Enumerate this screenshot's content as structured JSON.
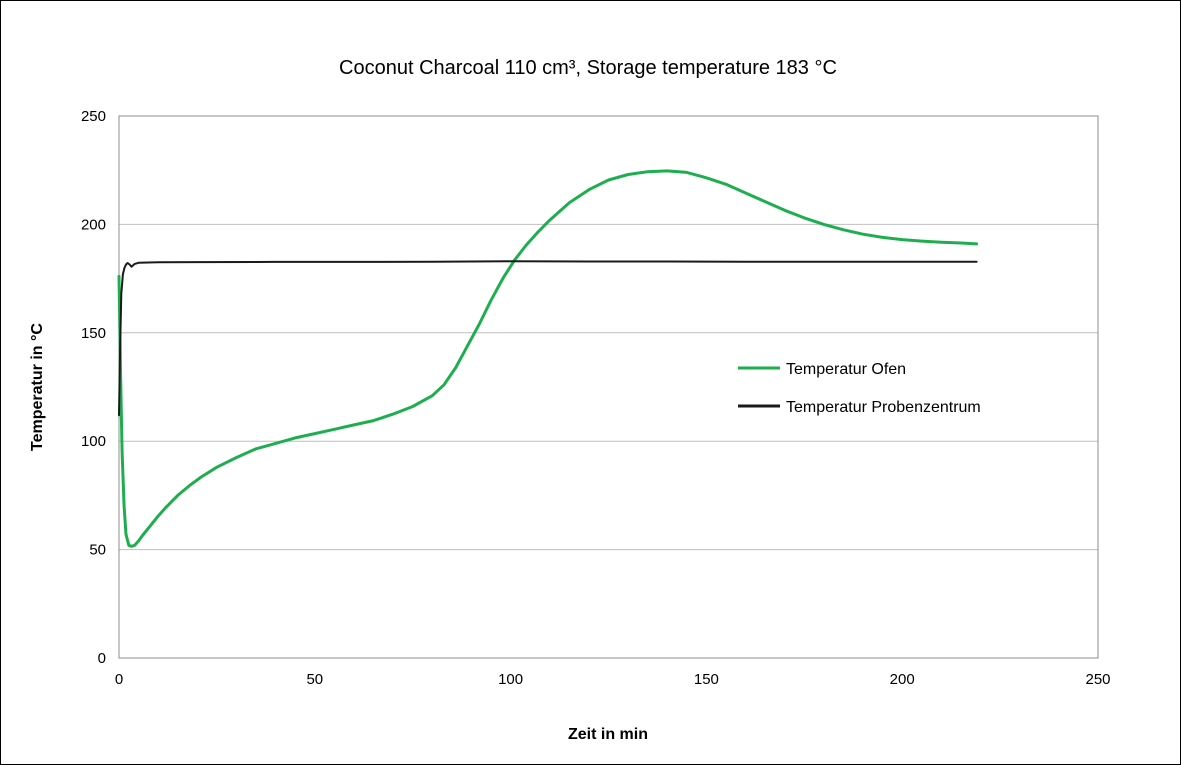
{
  "chart_data": {
    "type": "line",
    "title": "Coconut Charcoal 110 cm³, Storage temperature 183 °C",
    "xlabel": "Zeit in min",
    "ylabel": "Temperatur in °C",
    "xlim": [
      0,
      250
    ],
    "ylim": [
      0,
      250
    ],
    "xticks": [
      0,
      50,
      100,
      150,
      200,
      250
    ],
    "yticks": [
      0,
      50,
      100,
      150,
      200,
      250
    ],
    "grid": "horizontal",
    "legend_position": "right",
    "series": [
      {
        "name": "Temperatur Ofen",
        "color": "#1fae4f",
        "x": [
          0,
          0.4,
          0.8,
          1.3,
          1.8,
          2.5,
          3.2,
          4,
          5,
          6,
          8,
          10,
          12,
          15,
          18,
          21,
          25,
          30,
          35,
          40,
          45,
          50,
          55,
          60,
          65,
          70,
          75,
          80,
          83,
          86,
          89,
          92,
          95,
          98,
          101,
          104,
          107,
          110,
          115,
          120,
          125,
          130,
          135,
          140,
          145,
          150,
          155,
          160,
          165,
          170,
          175,
          180,
          185,
          190,
          195,
          200,
          205,
          210,
          215,
          219
        ],
        "y": [
          176,
          130,
          95,
          70,
          57,
          52,
          51.5,
          52,
          54,
          56.5,
          61,
          65.5,
          69.5,
          75,
          79.5,
          83.5,
          88,
          92.5,
          96.5,
          99,
          101.5,
          103.5,
          105.5,
          107.5,
          109.5,
          112.5,
          116,
          121,
          126,
          134,
          144,
          154,
          165,
          175,
          183.5,
          190.5,
          196.5,
          202,
          210,
          216,
          220.5,
          223,
          224.3,
          224.7,
          224,
          221.5,
          218.5,
          214.5,
          210.5,
          206.5,
          203,
          200,
          197.5,
          195.5,
          194,
          193,
          192.3,
          191.8,
          191.4,
          191
        ]
      },
      {
        "name": "Temperatur Probenzentrum",
        "color": "#1a1a1a",
        "x": [
          0,
          0.3,
          0.6,
          1,
          1.4,
          1.8,
          2.2,
          2.7,
          3.2,
          4,
          5,
          10,
          20,
          40,
          60,
          80,
          100,
          120,
          140,
          160,
          180,
          200,
          219
        ],
        "y": [
          112,
          145,
          168,
          177,
          180,
          181.5,
          182.2,
          181.5,
          180.5,
          181.8,
          182.3,
          182.5,
          182.6,
          182.7,
          182.7,
          182.8,
          183,
          182.9,
          182.9,
          182.8,
          182.8,
          182.8,
          182.8
        ]
      }
    ]
  }
}
